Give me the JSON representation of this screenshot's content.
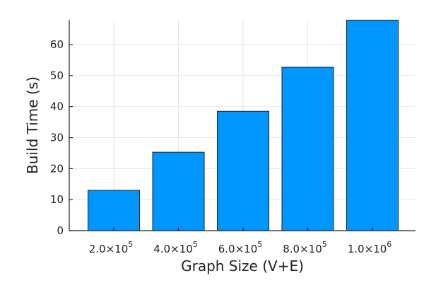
{
  "chart_data": {
    "type": "bar",
    "categories": [
      {
        "mantissa": "2.0×10",
        "exp": "5"
      },
      {
        "mantissa": "4.0×10",
        "exp": "5"
      },
      {
        "mantissa": "6.0×10",
        "exp": "5"
      },
      {
        "mantissa": "8.0×10",
        "exp": "5"
      },
      {
        "mantissa": "1.0×10",
        "exp": "6"
      }
    ],
    "x_values": [
      200000,
      400000,
      600000,
      800000,
      1000000
    ],
    "values": [
      13.0,
      25.3,
      38.5,
      52.7,
      67.9
    ],
    "title": "",
    "xlabel": "Graph Size (V+E)",
    "ylabel": "Build Time (s)",
    "ylim": [
      0,
      68
    ],
    "yticks": [
      0,
      10,
      20,
      30,
      40,
      50,
      60
    ],
    "grid": true,
    "legend": "none",
    "bar_color": "#0096FF"
  }
}
